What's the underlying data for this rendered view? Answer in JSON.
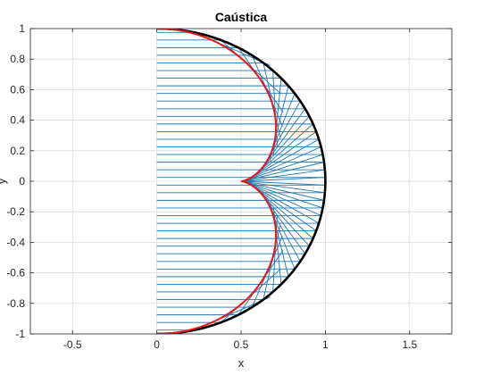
{
  "chart_data": {
    "type": "line",
    "title": "Caústica",
    "xlabel": "x",
    "ylabel": "y",
    "xlim": [
      -0.75,
      1.75
    ],
    "ylim": [
      -1,
      1
    ],
    "xticks": [
      -0.5,
      0,
      0.5,
      1,
      1.5
    ],
    "yticks": [
      -1,
      -0.8,
      -0.6,
      -0.4,
      -0.2,
      0,
      0.2,
      0.4,
      0.6,
      0.8,
      1
    ],
    "x_tick_labels": [
      "-0.5",
      "0",
      "0.5",
      "1",
      "1.5"
    ],
    "y_tick_labels": [
      "-1",
      "-0.8",
      "-0.6",
      "-0.4",
      "-0.2",
      "0",
      "0.2",
      "0.4",
      "0.6",
      "0.8",
      "1"
    ],
    "grid": true,
    "mirror": {
      "shape": "semicircle",
      "radius": 1,
      "center": [
        0,
        0
      ],
      "x_range": [
        0,
        1
      ],
      "color": "#000000"
    },
    "rays": {
      "direction": "horizontal from x=0, reflected once by the mirror",
      "reflected_length": 0.5,
      "y_values": [
        -0.975,
        -0.925,
        -0.875,
        -0.825,
        -0.775,
        -0.725,
        -0.675,
        -0.625,
        -0.575,
        -0.525,
        -0.475,
        -0.425,
        -0.375,
        -0.325,
        -0.275,
        -0.225,
        -0.175,
        -0.125,
        -0.075,
        -0.025,
        0.025,
        0.075,
        0.125,
        0.175,
        0.225,
        0.275,
        0.325,
        0.375,
        0.425,
        0.475,
        0.525,
        0.575,
        0.625,
        0.675,
        0.725,
        0.775,
        0.825,
        0.875,
        0.925,
        0.975
      ],
      "color": "#1f77b4"
    },
    "caustic": {
      "curve": "nephroid: x = (3cos t - cos 3t)/4, y = (3sin t - sin 3t)/4",
      "x_range": [
        0,
        0.75
      ],
      "cusp": [
        0.5,
        0
      ],
      "color": "#e8171a"
    }
  }
}
